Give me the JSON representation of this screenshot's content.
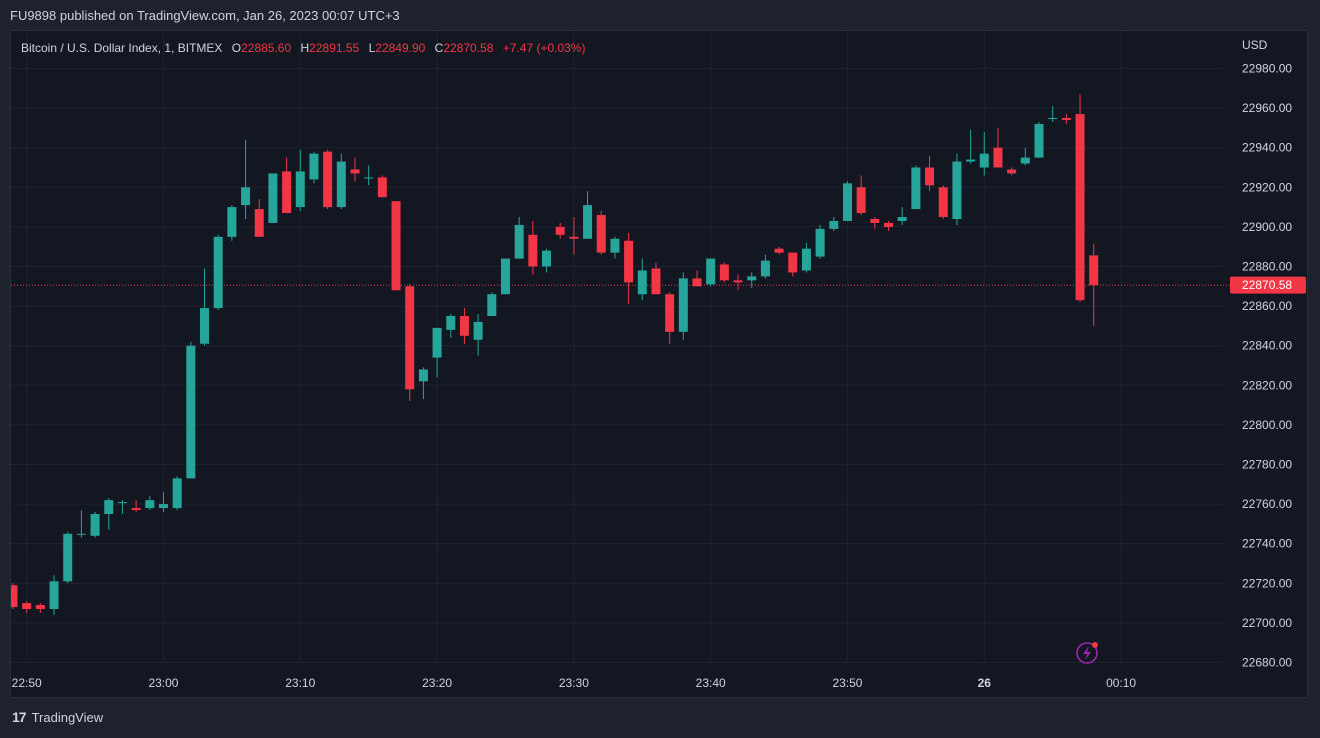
{
  "header": {
    "published": "FU9898 published on TradingView.com, Jan 26, 2023 00:07 UTC+3"
  },
  "legend": {
    "symbol": "Bitcoin / U.S. Dollar Index, 1, BITMEX",
    "o_label": "O",
    "o_value": "22885.60",
    "h_label": "H",
    "h_value": "22891.55",
    "l_label": "L",
    "l_value": "22849.90",
    "c_label": "C",
    "c_value": "22870.58",
    "change": "+7.47 (+0.03%)"
  },
  "price_axis": {
    "currency": "USD",
    "last_price": "22870.58"
  },
  "footer": {
    "brand": "TradingView"
  },
  "colors": {
    "up": "#26a69a",
    "down": "#f23645",
    "background": "#131722",
    "grid": "#1f2330",
    "text": "#d1d4dc",
    "accent_icon": "#9c27b0"
  },
  "chart_data": {
    "type": "candlestick",
    "title": "Bitcoin / U.S. Dollar Index, 1, BITMEX",
    "ylabel": "USD",
    "ylim": [
      22670,
      22995
    ],
    "grid": true,
    "y_ticks": [
      22680,
      22700,
      22720,
      22740,
      22760,
      22780,
      22800,
      22820,
      22840,
      22860,
      22880,
      22900,
      22920,
      22940,
      22960,
      22980
    ],
    "x_ticks": [
      {
        "label": "22:50",
        "bar": 1
      },
      {
        "label": "23:00",
        "bar": 11
      },
      {
        "label": "23:10",
        "bar": 21
      },
      {
        "label": "23:20",
        "bar": 31
      },
      {
        "label": "23:30",
        "bar": 41
      },
      {
        "label": "23:40",
        "bar": 51
      },
      {
        "label": "23:50",
        "bar": 61
      },
      {
        "label": "26",
        "bar": 71,
        "bold": true
      },
      {
        "label": "00:10",
        "bar": 81
      }
    ],
    "last_price": 22870.58,
    "candles": [
      {
        "o": 22719,
        "h": 22720,
        "l": 22707,
        "c": 22708
      },
      {
        "o": 22710,
        "h": 22711,
        "l": 22705,
        "c": 22707
      },
      {
        "o": 22709,
        "h": 22710,
        "l": 22705,
        "c": 22707
      },
      {
        "o": 22707,
        "h": 22724,
        "l": 22704,
        "c": 22721
      },
      {
        "o": 22721,
        "h": 22746,
        "l": 22720,
        "c": 22745
      },
      {
        "o": 22745,
        "h": 22757,
        "l": 22743,
        "c": 22745
      },
      {
        "o": 22744,
        "h": 22756,
        "l": 22743,
        "c": 22755
      },
      {
        "o": 22755,
        "h": 22763,
        "l": 22747,
        "c": 22762
      },
      {
        "o": 22761,
        "h": 22762,
        "l": 22755,
        "c": 22761
      },
      {
        "o": 22758,
        "h": 22762,
        "l": 22756,
        "c": 22757
      },
      {
        "o": 22758,
        "h": 22764,
        "l": 22757,
        "c": 22762
      },
      {
        "o": 22758,
        "h": 22766,
        "l": 22756,
        "c": 22760
      },
      {
        "o": 22758,
        "h": 22774,
        "l": 22757,
        "c": 22773
      },
      {
        "o": 22773,
        "h": 22842,
        "l": 22773,
        "c": 22840
      },
      {
        "o": 22841,
        "h": 22879,
        "l": 22840,
        "c": 22859
      },
      {
        "o": 22859,
        "h": 22896,
        "l": 22858,
        "c": 22895
      },
      {
        "o": 22895,
        "h": 22911,
        "l": 22893,
        "c": 22910
      },
      {
        "o": 22911,
        "h": 22944,
        "l": 22904,
        "c": 22920
      },
      {
        "o": 22909,
        "h": 22914,
        "l": 22895,
        "c": 22895
      },
      {
        "o": 22902,
        "h": 22927,
        "l": 22902,
        "c": 22927
      },
      {
        "o": 22928,
        "h": 22935,
        "l": 22907,
        "c": 22907
      },
      {
        "o": 22910,
        "h": 22939,
        "l": 22908,
        "c": 22928
      },
      {
        "o": 22924,
        "h": 22938,
        "l": 22922,
        "c": 22937
      },
      {
        "o": 22938,
        "h": 22939,
        "l": 22909,
        "c": 22910
      },
      {
        "o": 22910,
        "h": 22937,
        "l": 22909,
        "c": 22933
      },
      {
        "o": 22929,
        "h": 22935,
        "l": 22923,
        "c": 22927
      },
      {
        "o": 22925,
        "h": 22931,
        "l": 22921,
        "c": 22925
      },
      {
        "o": 22925,
        "h": 22926,
        "l": 22915,
        "c": 22915
      },
      {
        "o": 22913,
        "h": 22913,
        "l": 22869,
        "c": 22868
      },
      {
        "o": 22870,
        "h": 22871,
        "l": 22812,
        "c": 22818
      },
      {
        "o": 22822,
        "h": 22829,
        "l": 22813,
        "c": 22828
      },
      {
        "o": 22834,
        "h": 22849,
        "l": 22824,
        "c": 22849
      },
      {
        "o": 22848,
        "h": 22856,
        "l": 22844,
        "c": 22855
      },
      {
        "o": 22855,
        "h": 22859,
        "l": 22841,
        "c": 22845
      },
      {
        "o": 22843,
        "h": 22856,
        "l": 22835,
        "c": 22852
      },
      {
        "o": 22855,
        "h": 22867,
        "l": 22855,
        "c": 22866
      },
      {
        "o": 22866,
        "h": 22884,
        "l": 22866,
        "c": 22884
      },
      {
        "o": 22884,
        "h": 22905,
        "l": 22884,
        "c": 22901
      },
      {
        "o": 22896,
        "h": 22903,
        "l": 22876,
        "c": 22880
      },
      {
        "o": 22880,
        "h": 22889,
        "l": 22877,
        "c": 22888
      },
      {
        "o": 22900,
        "h": 22902,
        "l": 22894,
        "c": 22896
      },
      {
        "o": 22895,
        "h": 22905,
        "l": 22886,
        "c": 22894
      },
      {
        "o": 22894,
        "h": 22918,
        "l": 22894,
        "c": 22911
      },
      {
        "o": 22906,
        "h": 22908,
        "l": 22886,
        "c": 22887
      },
      {
        "o": 22887,
        "h": 22895,
        "l": 22884,
        "c": 22894
      },
      {
        "o": 22893,
        "h": 22897,
        "l": 22861,
        "c": 22872
      },
      {
        "o": 22866,
        "h": 22884,
        "l": 22863,
        "c": 22878
      },
      {
        "o": 22879,
        "h": 22882,
        "l": 22866,
        "c": 22866
      },
      {
        "o": 22866,
        "h": 22867,
        "l": 22841,
        "c": 22847
      },
      {
        "o": 22847,
        "h": 22877,
        "l": 22843,
        "c": 22874
      },
      {
        "o": 22874,
        "h": 22878,
        "l": 22870,
        "c": 22870
      },
      {
        "o": 22871,
        "h": 22884,
        "l": 22870,
        "c": 22884
      },
      {
        "o": 22881,
        "h": 22882,
        "l": 22872,
        "c": 22873
      },
      {
        "o": 22873,
        "h": 22876,
        "l": 22868,
        "c": 22872
      },
      {
        "o": 22873,
        "h": 22877,
        "l": 22869,
        "c": 22875
      },
      {
        "o": 22875,
        "h": 22886,
        "l": 22874,
        "c": 22883
      },
      {
        "o": 22889,
        "h": 22890,
        "l": 22886,
        "c": 22887
      },
      {
        "o": 22887,
        "h": 22887,
        "l": 22875,
        "c": 22877
      },
      {
        "o": 22878,
        "h": 22892,
        "l": 22877,
        "c": 22889
      },
      {
        "o": 22885,
        "h": 22901,
        "l": 22884,
        "c": 22899
      },
      {
        "o": 22899,
        "h": 22905,
        "l": 22898,
        "c": 22903
      },
      {
        "o": 22903,
        "h": 22923,
        "l": 22903,
        "c": 22922
      },
      {
        "o": 22920,
        "h": 22926,
        "l": 22906,
        "c": 22907
      },
      {
        "o": 22904,
        "h": 22905,
        "l": 22899,
        "c": 22902
      },
      {
        "o": 22902,
        "h": 22903,
        "l": 22898,
        "c": 22900
      },
      {
        "o": 22903,
        "h": 22910,
        "l": 22901,
        "c": 22905
      },
      {
        "o": 22909,
        "h": 22931,
        "l": 22909,
        "c": 22930
      },
      {
        "o": 22930,
        "h": 22936,
        "l": 22918,
        "c": 22921
      },
      {
        "o": 22920,
        "h": 22921,
        "l": 22904,
        "c": 22905
      },
      {
        "o": 22904,
        "h": 22937,
        "l": 22901,
        "c": 22933
      },
      {
        "o": 22933,
        "h": 22949,
        "l": 22932,
        "c": 22934
      },
      {
        "o": 22930,
        "h": 22948,
        "l": 22926,
        "c": 22937
      },
      {
        "o": 22940,
        "h": 22950,
        "l": 22930,
        "c": 22930
      },
      {
        "o": 22929,
        "h": 22930,
        "l": 22926,
        "c": 22927
      },
      {
        "o": 22932,
        "h": 22940,
        "l": 22931,
        "c": 22935
      },
      {
        "o": 22935,
        "h": 22953,
        "l": 22935,
        "c": 22952
      },
      {
        "o": 22955,
        "h": 22961,
        "l": 22953,
        "c": 22955
      },
      {
        "o": 22955,
        "h": 22957,
        "l": 22952,
        "c": 22954
      },
      {
        "o": 22957,
        "h": 22967,
        "l": 22862,
        "c": 22863
      },
      {
        "o": 22885.6,
        "h": 22891.55,
        "l": 22849.9,
        "c": 22870.58
      }
    ]
  }
}
